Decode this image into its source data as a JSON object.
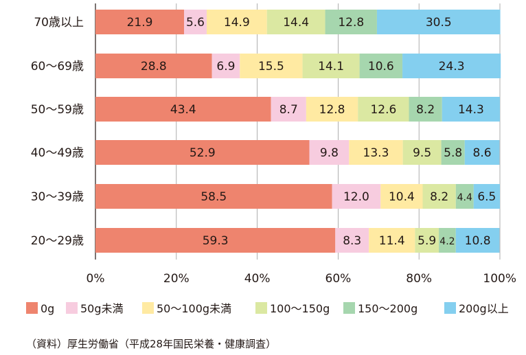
{
  "chart_data": {
    "type": "bar",
    "orientation": "horizontal",
    "stacked": true,
    "categories": [
      "70歳以上",
      "60〜69歳",
      "50〜59歳",
      "40〜49歳",
      "30〜39歳",
      "20〜29歳"
    ],
    "series": [
      {
        "name": "0g",
        "color": "#EE846E",
        "values": [
          21.9,
          28.8,
          43.4,
          52.9,
          58.5,
          59.3
        ]
      },
      {
        "name": "50g未満",
        "color": "#F7CCDF",
        "values": [
          5.6,
          6.9,
          8.7,
          9.8,
          12.0,
          8.3
        ]
      },
      {
        "name": "50〜100g未満",
        "color": "#FFEAA2",
        "values": [
          14.9,
          15.5,
          12.8,
          13.3,
          10.4,
          11.4
        ]
      },
      {
        "name": "100〜150g",
        "color": "#DBE8A2",
        "values": [
          14.4,
          14.1,
          12.6,
          9.5,
          8.2,
          5.9
        ]
      },
      {
        "name": "150〜200g",
        "color": "#A6D6AE",
        "values": [
          12.8,
          10.6,
          8.2,
          5.8,
          4.4,
          4.2
        ]
      },
      {
        "name": "200g以上",
        "color": "#84CFEF",
        "values": [
          30.5,
          24.3,
          14.3,
          8.6,
          6.5,
          10.8
        ]
      }
    ],
    "value_labels": [
      [
        "21.9",
        "5.6",
        "14.9",
        "14.4",
        "12.8",
        "30.5"
      ],
      [
        "28.8",
        "6.9",
        "15.5",
        "14.1",
        "10.6",
        "24.3"
      ],
      [
        "43.4",
        "8.7",
        "12.8",
        "12.6",
        "8.2",
        "14.3"
      ],
      [
        "52.9",
        "9.8",
        "13.3",
        "9.5",
        "5.8",
        "8.6"
      ],
      [
        "58.5",
        "12.0",
        "10.4",
        "8.2",
        "4.4",
        "6.5"
      ],
      [
        "59.3",
        "8.3",
        "11.4",
        "5.9",
        "4.2",
        "10.8"
      ]
    ],
    "x_ticks": [
      "0%",
      "20%",
      "40%",
      "60%",
      "80%",
      "100%"
    ],
    "xlim": [
      0,
      100
    ],
    "grid": true,
    "legend_position": "bottom",
    "xlabel": "",
    "ylabel": ""
  },
  "source": "（資料）厚生労働省（平成28年国民栄養・健康調査）"
}
